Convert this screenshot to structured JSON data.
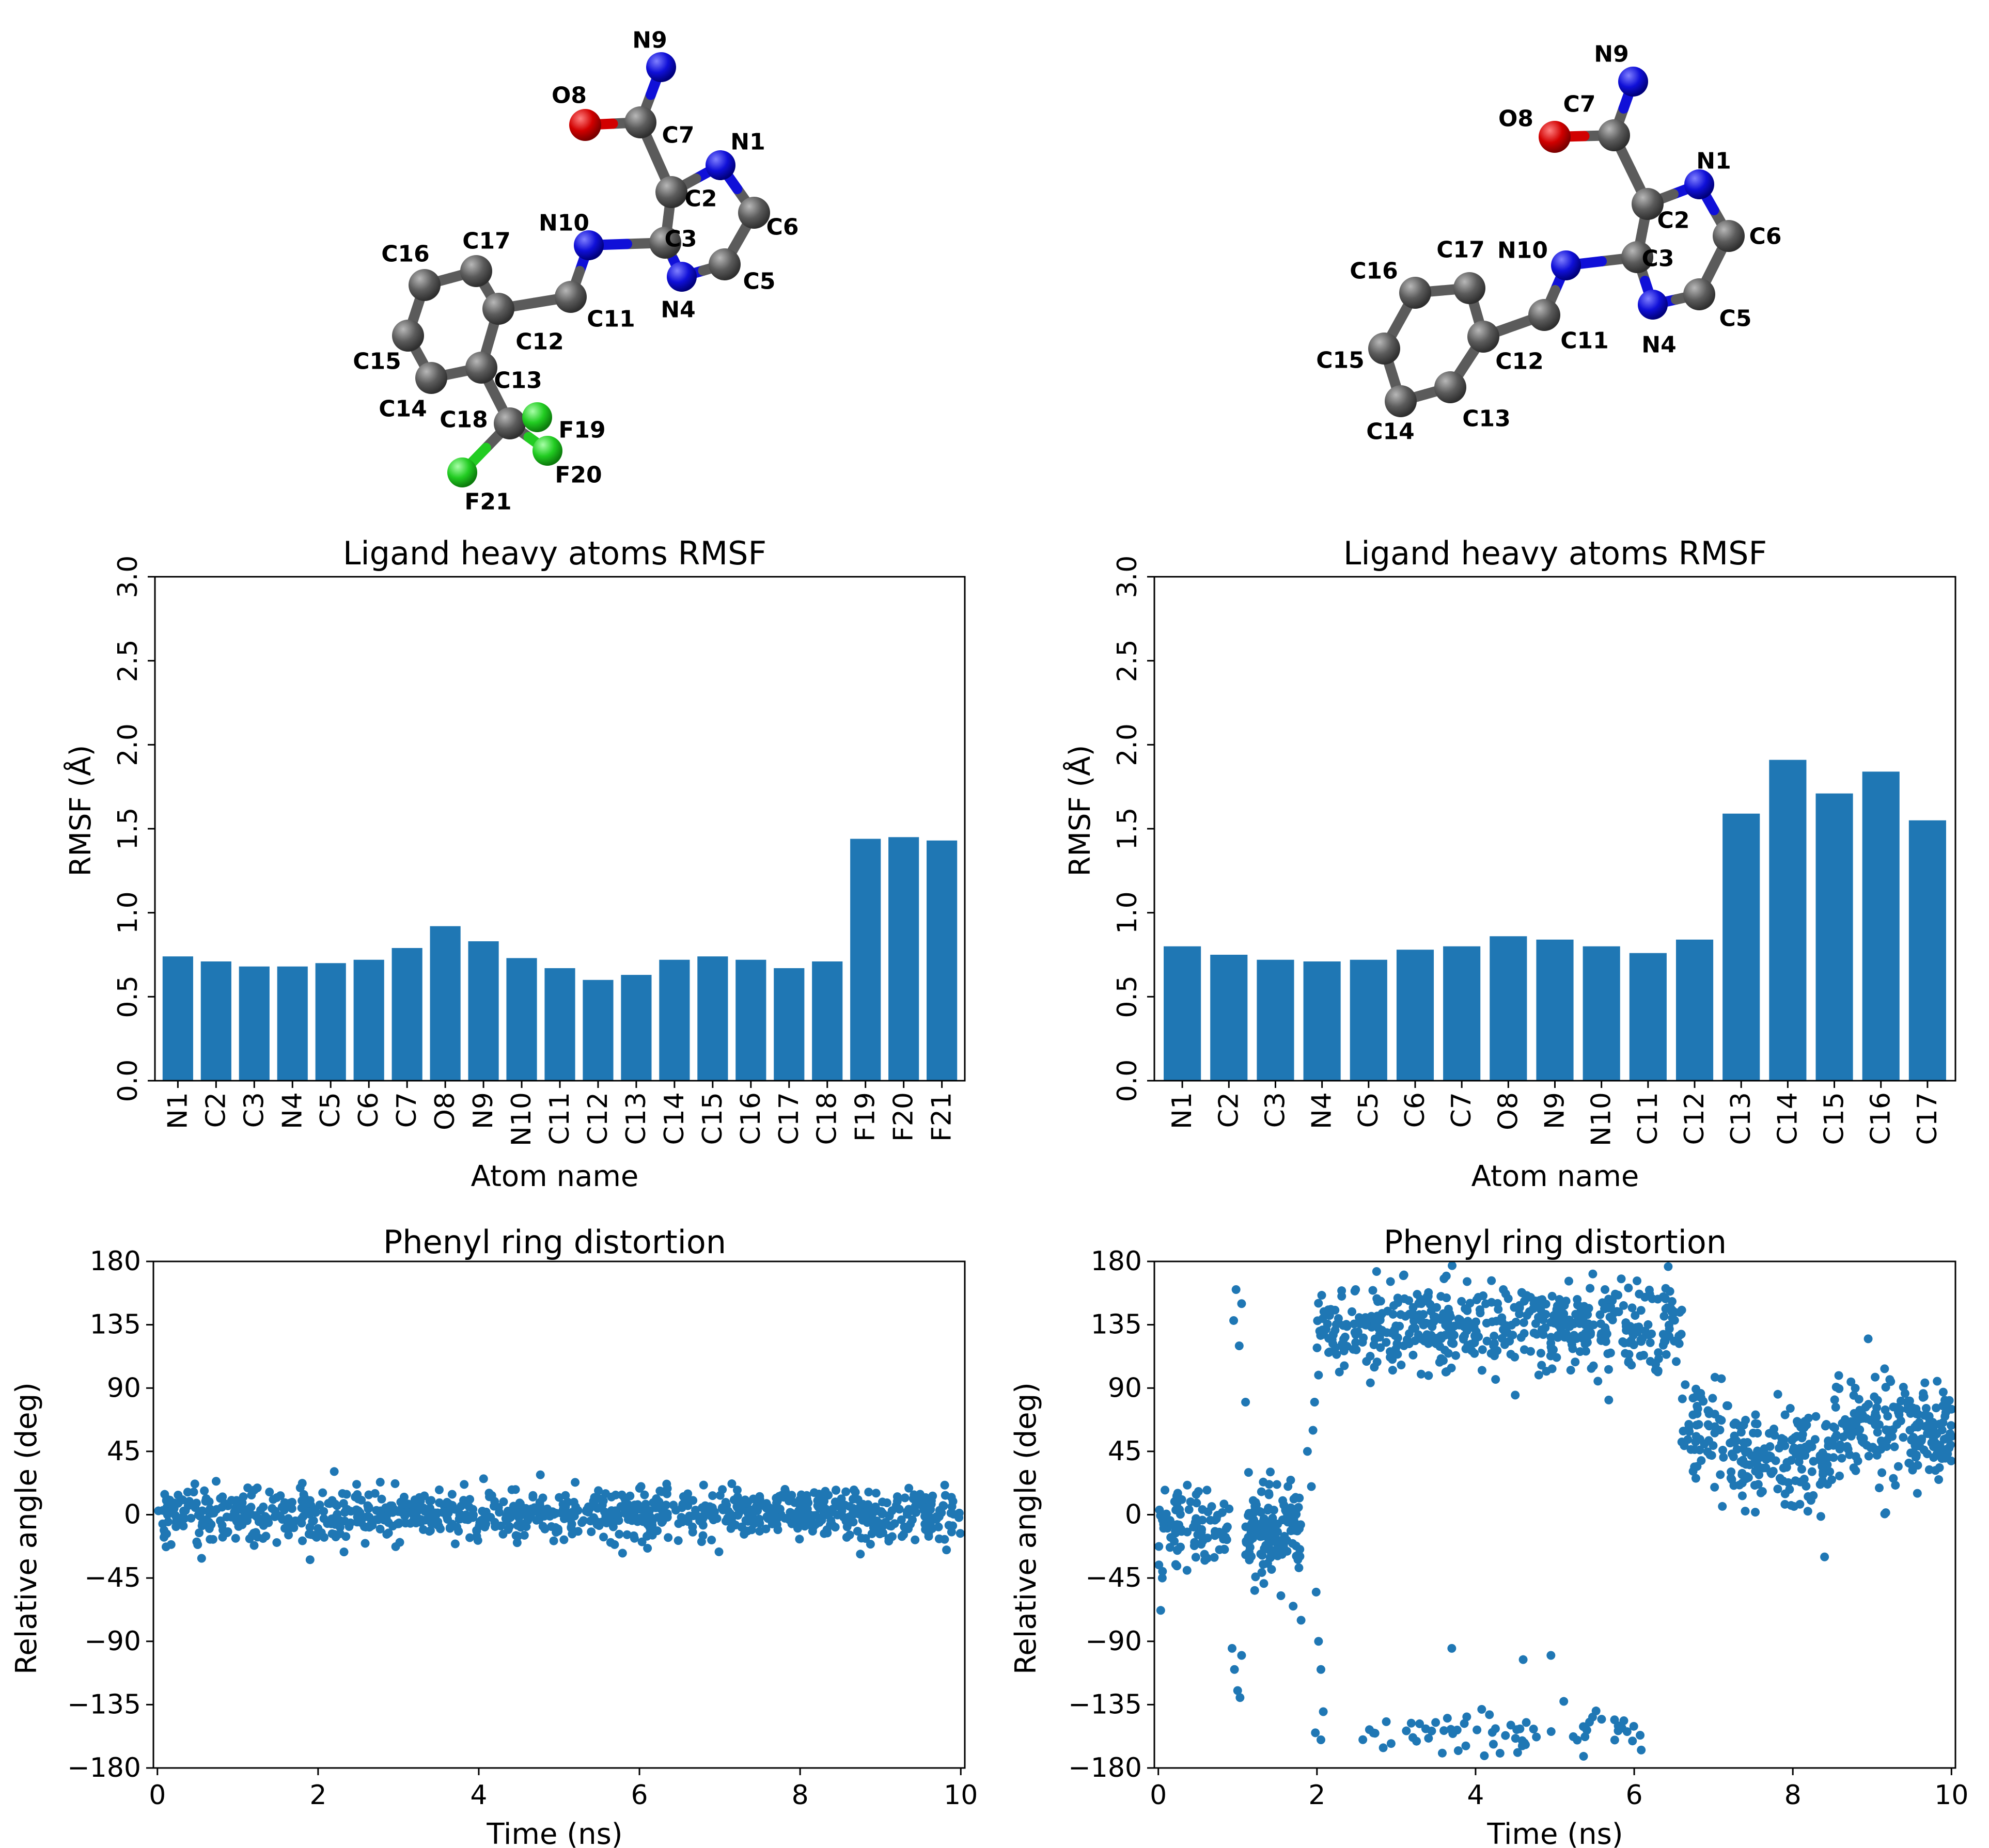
{
  "molecules": [
    {
      "atoms": [
        {
          "label": "N1",
          "el": "N"
        },
        {
          "label": "C2",
          "el": "C"
        },
        {
          "label": "C3",
          "el": "C"
        },
        {
          "label": "N4",
          "el": "N"
        },
        {
          "label": "C5",
          "el": "C"
        },
        {
          "label": "C6",
          "el": "C"
        },
        {
          "label": "C7",
          "el": "C"
        },
        {
          "label": "O8",
          "el": "O"
        },
        {
          "label": "N9",
          "el": "N"
        },
        {
          "label": "N10",
          "el": "N"
        },
        {
          "label": "C11",
          "el": "C"
        },
        {
          "label": "C12",
          "el": "C"
        },
        {
          "label": "C13",
          "el": "C"
        },
        {
          "label": "C14",
          "el": "C"
        },
        {
          "label": "C15",
          "el": "C"
        },
        {
          "label": "C16",
          "el": "C"
        },
        {
          "label": "C17",
          "el": "C"
        },
        {
          "label": "C18",
          "el": "C"
        },
        {
          "label": "F19",
          "el": "F"
        },
        {
          "label": "F20",
          "el": "F"
        },
        {
          "label": "F21",
          "el": "F"
        }
      ]
    },
    {
      "atoms": [
        {
          "label": "N1",
          "el": "N"
        },
        {
          "label": "C2",
          "el": "C"
        },
        {
          "label": "C3",
          "el": "C"
        },
        {
          "label": "N4",
          "el": "N"
        },
        {
          "label": "C5",
          "el": "C"
        },
        {
          "label": "C6",
          "el": "C"
        },
        {
          "label": "C7",
          "el": "C"
        },
        {
          "label": "O8",
          "el": "O"
        },
        {
          "label": "N9",
          "el": "N"
        },
        {
          "label": "N10",
          "el": "N"
        },
        {
          "label": "C11",
          "el": "C"
        },
        {
          "label": "C12",
          "el": "C"
        },
        {
          "label": "C13",
          "el": "C"
        },
        {
          "label": "C14",
          "el": "C"
        },
        {
          "label": "C15",
          "el": "C"
        },
        {
          "label": "C16",
          "el": "C"
        },
        {
          "label": "C17",
          "el": "C"
        }
      ]
    }
  ],
  "colors": {
    "bar": "#1f77b4",
    "C": "#5b5b5b",
    "N": "#1010d8",
    "O": "#d10000",
    "F": "#22cc22"
  },
  "chart_data": [
    {
      "type": "bar",
      "title": "Ligand heavy atoms RMSF",
      "xlabel": "Atom name",
      "ylabel": "RMSF (Å)",
      "ylim": [
        0.0,
        3.0
      ],
      "yticks": [
        "0.0",
        "0.5",
        "1.0",
        "1.5",
        "2.0",
        "2.5",
        "3.0"
      ],
      "categories": [
        "N1",
        "C2",
        "C3",
        "N4",
        "C5",
        "C6",
        "C7",
        "O8",
        "N9",
        "N10",
        "C11",
        "C12",
        "C13",
        "C14",
        "C15",
        "C16",
        "C17",
        "C18",
        "F19",
        "F20",
        "F21"
      ],
      "values": [
        0.74,
        0.71,
        0.68,
        0.68,
        0.7,
        0.72,
        0.79,
        0.92,
        0.83,
        0.73,
        0.67,
        0.6,
        0.63,
        0.72,
        0.74,
        0.72,
        0.67,
        0.71,
        1.44,
        1.45,
        1.43
      ]
    },
    {
      "type": "bar",
      "title": "Ligand heavy atoms RMSF",
      "xlabel": "Atom name",
      "ylabel": "RMSF (Å)",
      "ylim": [
        0.0,
        3.0
      ],
      "yticks": [
        "0.0",
        "0.5",
        "1.0",
        "1.5",
        "2.0",
        "2.5",
        "3.0"
      ],
      "categories": [
        "N1",
        "C2",
        "C3",
        "N4",
        "C5",
        "C6",
        "C7",
        "O8",
        "N9",
        "N10",
        "C11",
        "C12",
        "C13",
        "C14",
        "C15",
        "C16",
        "C17"
      ],
      "values": [
        0.8,
        0.75,
        0.72,
        0.71,
        0.72,
        0.78,
        0.8,
        0.86,
        0.84,
        0.8,
        0.76,
        0.84,
        1.59,
        1.91,
        1.71,
        1.84,
        1.55
      ]
    },
    {
      "type": "scatter",
      "title": "Phenyl ring distortion",
      "xlabel": "Time (ns)",
      "ylabel": "Relative angle (deg)",
      "xlim": [
        0,
        10
      ],
      "ylim": [
        -180,
        180
      ],
      "xticks": [
        "0",
        "2",
        "4",
        "6",
        "8",
        "10"
      ],
      "yticks": [
        "−180",
        "−135",
        "−90",
        "−45",
        "0",
        "45",
        "90",
        "135",
        "180"
      ],
      "segments": [
        {
          "t_start": 0.0,
          "t_end": 10.0,
          "mean": 0,
          "spread": 9,
          "n": 1000
        }
      ],
      "outliers": [
        [
          0.55,
          -31
        ],
        [
          1.9,
          -32
        ],
        [
          5.2,
          23
        ],
        [
          7.15,
          22
        ],
        [
          8.75,
          -28
        ],
        [
          9.8,
          21
        ]
      ]
    },
    {
      "type": "scatter",
      "title": "Phenyl ring distortion",
      "xlabel": "Time (ns)",
      "ylabel": "Relative angle (deg)",
      "xlim": [
        0,
        10
      ],
      "ylim": [
        -180,
        180
      ],
      "xticks": [
        "0",
        "2",
        "4",
        "6",
        "8",
        "10"
      ],
      "yticks": [
        "−180",
        "−135",
        "−90",
        "−45",
        "0",
        "45",
        "90",
        "135",
        "180"
      ],
      "segments": [
        {
          "t_start": 0.0,
          "t_end": 0.9,
          "mean": -10,
          "spread": 14,
          "n": 90
        },
        {
          "t_start": 1.1,
          "t_end": 1.8,
          "mean": -12,
          "spread": 16,
          "n": 140
        },
        {
          "t_start": 2.0,
          "t_end": 6.6,
          "mean": 133,
          "spread": 16,
          "n": 520
        },
        {
          "t_start": 2.5,
          "t_end": 6.1,
          "mean": -156,
          "spread": 8,
          "n": 70
        },
        {
          "t_start": 6.6,
          "t_end": 7.2,
          "mean": 60,
          "spread": 18,
          "n": 60
        },
        {
          "t_start": 7.2,
          "t_end": 8.5,
          "mean": 40,
          "spread": 16,
          "n": 170
        },
        {
          "t_start": 8.5,
          "t_end": 10.0,
          "mean": 58,
          "spread": 18,
          "n": 210
        }
      ],
      "outliers": [
        [
          0.95,
          138
        ],
        [
          0.98,
          160
        ],
        [
          1.05,
          150
        ],
        [
          1.02,
          120
        ],
        [
          1.1,
          80
        ],
        [
          0.93,
          -95
        ],
        [
          0.96,
          -110
        ],
        [
          1.0,
          -125
        ],
        [
          1.03,
          -130
        ],
        [
          1.05,
          -100
        ],
        [
          1.7,
          -65
        ],
        [
          1.8,
          -75
        ],
        [
          1.88,
          45
        ],
        [
          1.93,
          20
        ],
        [
          1.95,
          60
        ],
        [
          1.97,
          80
        ],
        [
          1.99,
          -55
        ],
        [
          2.02,
          -90
        ],
        [
          2.05,
          -110
        ],
        [
          2.08,
          -140
        ],
        [
          1.98,
          -155
        ],
        [
          2.05,
          -160
        ],
        [
          0.05,
          -45
        ],
        [
          0.03,
          -68
        ],
        [
          3.7,
          -95
        ],
        [
          4.6,
          -103
        ],
        [
          4.95,
          -100
        ],
        [
          4.5,
          85
        ],
        [
          4.35,
          160
        ],
        [
          8.4,
          -30
        ],
        [
          8.95,
          125
        ]
      ]
    }
  ]
}
